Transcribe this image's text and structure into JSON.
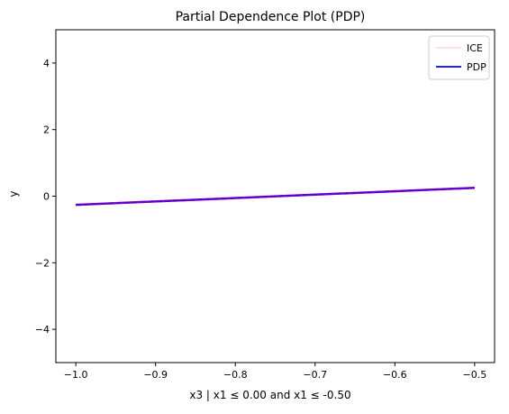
{
  "chart_data": {
    "type": "line",
    "title": "Partial Dependence Plot (PDP)",
    "xlabel": "x3 | x1 ≤ 0.00 and x1 ≤ -0.50",
    "ylabel": "y",
    "xlim": [
      -1.025,
      -0.475
    ],
    "ylim": [
      -5,
      5
    ],
    "xticks": [
      -1.0,
      -0.9,
      -0.8,
      -0.7,
      -0.6,
      -0.5
    ],
    "xtick_labels": [
      "−1.0",
      "−0.9",
      "−0.8",
      "−0.7",
      "−0.6",
      "−0.5"
    ],
    "yticks": [
      -4,
      -2,
      0,
      2,
      4
    ],
    "ytick_labels": [
      "−4",
      "−2",
      "0",
      "2",
      "4"
    ],
    "grid": false,
    "legend_position": "top-right",
    "series": [
      {
        "name": "ICE",
        "color": "#ffc0cb",
        "x": [
          -1.0,
          -0.5
        ],
        "y": [
          -0.26,
          0.25
        ],
        "lines": [
          {
            "offset": 0.0
          },
          {
            "offset": 0.02
          },
          {
            "offset": -0.02
          }
        ]
      },
      {
        "name": "PDP",
        "color": "#0000ff",
        "x": [
          -1.0,
          -0.5
        ],
        "y": [
          -0.26,
          0.25
        ]
      }
    ],
    "overlap_color": "#8000c0"
  }
}
